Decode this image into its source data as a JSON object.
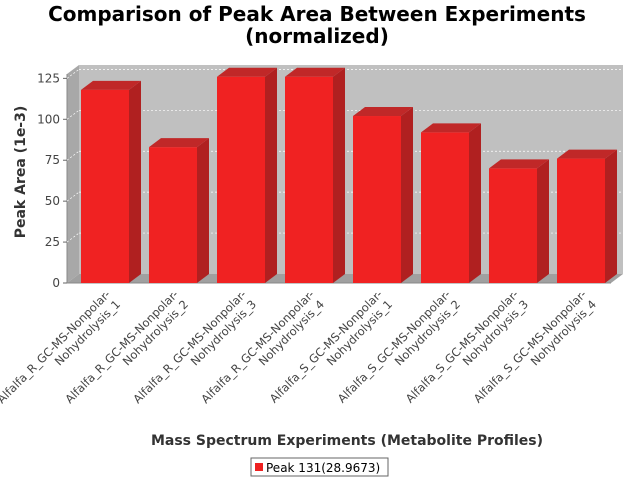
{
  "chart_data": {
    "type": "bar",
    "title_lines": [
      "Comparison of Peak Area Between Experiments",
      "(normalized)"
    ],
    "xlabel": "Mass Spectrum Experiments (Metabolite Profiles)",
    "ylabel": "Peak Area (1e-3)",
    "ylim": [
      0,
      135
    ],
    "yticks": [
      0,
      25,
      50,
      75,
      100,
      125
    ],
    "grid": true,
    "legend_position": "bottom-center",
    "categories": [
      [
        "Alfalfa_R_GC-MS-Nonpolar-",
        "Nohydrolysis_1"
      ],
      [
        "Alfalfa_R_GC-MS-Nonpolar-",
        "Nohydrolysis_2"
      ],
      [
        "Alfalfa_R_GC-MS-Nonpolar-",
        "Nohydrolysis_3"
      ],
      [
        "Alfalfa_R_GC-MS-Nonpolar-",
        "Nohydrolysis_4"
      ],
      [
        "Alfalfa_S_GC-MS-Nonpolar-",
        "Nohydrolysis_1"
      ],
      [
        "Alfalfa_S_GC-MS-Nonpolar-",
        "Nohydrolysis_2"
      ],
      [
        "Alfalfa_S_GC-MS-Nonpolar-",
        "Nohydrolysis_3"
      ],
      [
        "Alfalfa_S_GC-MS-Nonpolar-",
        "Nohydrolysis_4"
      ]
    ],
    "series": [
      {
        "name": "Peak 131(28.9673)",
        "color": "#ee2020",
        "values": [
          118,
          83,
          126,
          126,
          102,
          92,
          70,
          76
        ]
      }
    ],
    "colors": {
      "plot_background": "#c0c0c0",
      "wall": "#a8a8a8",
      "floor": "#a0a0a0",
      "bar_front": "#f02222",
      "bar_top": "#c02828",
      "bar_side": "#b02020"
    }
  }
}
